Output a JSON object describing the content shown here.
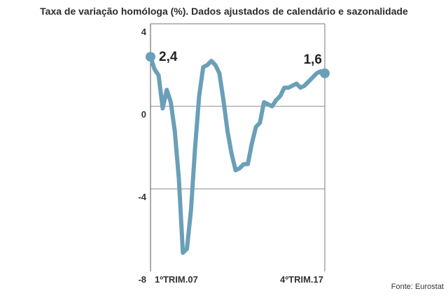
{
  "chart_data": {
    "type": "line",
    "title": "Taxa de variação homóloga (%). Dados ajustados de calendário e sazonalidade",
    "ylim": [
      -8,
      4
    ],
    "yticks": [
      4,
      0,
      -4,
      -8
    ],
    "xlabels": [
      "1ºTRIM.07",
      "4ºTRIM.17"
    ],
    "grid": true,
    "series": [
      {
        "values": [
          2.4,
          1.8,
          1.5,
          -0.1,
          0.8,
          0.2,
          -1.2,
          -3.5,
          -7.1,
          -6.9,
          -5.0,
          -2.0,
          0.5,
          1.9,
          2.0,
          2.2,
          2.0,
          1.6,
          0.3,
          -1.2,
          -2.3,
          -3.1,
          -3.0,
          -2.8,
          -2.8,
          -1.8,
          -1.0,
          -0.8,
          0.2,
          0.1,
          0.0,
          0.3,
          0.5,
          0.9,
          0.9,
          1.0,
          1.1,
          0.9,
          1.0,
          1.2,
          1.4,
          1.6,
          1.7,
          1.6
        ],
        "labels": [
          {
            "index": 0,
            "text": "2,4"
          },
          {
            "index": 43,
            "text": "1,6"
          }
        ]
      }
    ],
    "source": "Fonte: Eurostat",
    "line_color": "#6a9fb8"
  }
}
